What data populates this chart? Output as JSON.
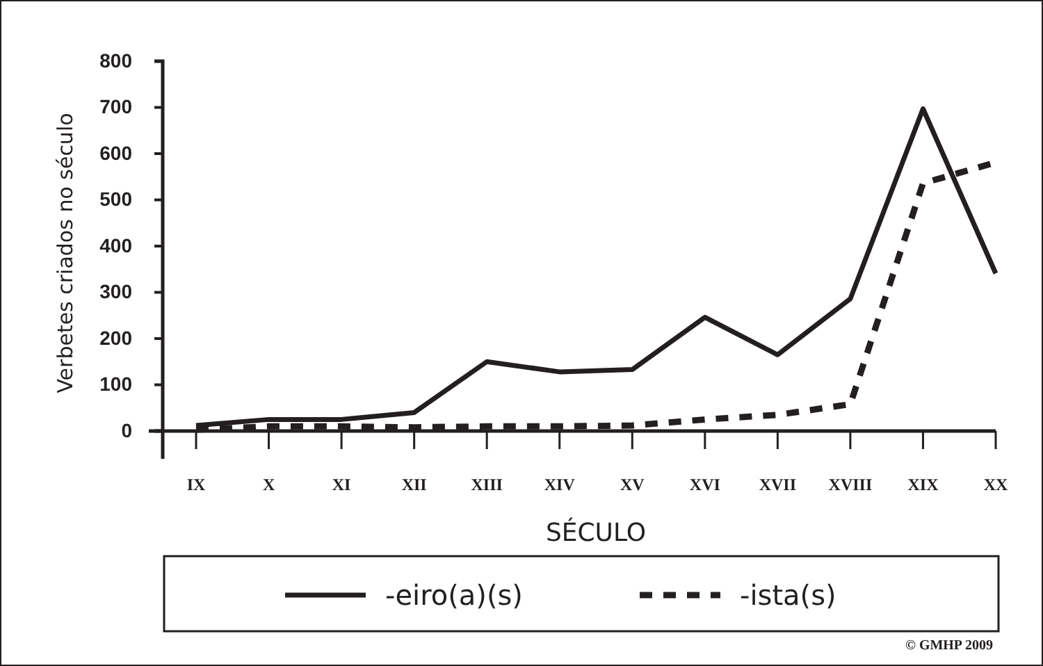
{
  "chart_data": {
    "type": "line",
    "xlabel": "SÉCULO",
    "ylabel": "Verbetes criados no século",
    "categories": [
      "IX",
      "X",
      "XI",
      "XII",
      "XIII",
      "XIV",
      "XV",
      "XVI",
      "XVII",
      "XVIII",
      "XIX",
      "XX"
    ],
    "series": [
      {
        "name": "-eiro(a)(s)",
        "color": "#231f20",
        "line_style": "solid",
        "values": [
          12,
          25,
          25,
          40,
          150,
          128,
          133,
          246,
          165,
          286,
          697,
          341
        ]
      },
      {
        "name": "-ista(s)",
        "color": "#231f20",
        "line_style": "dashed",
        "values": [
          3,
          10,
          10,
          8,
          10,
          10,
          12,
          25,
          35,
          58,
          536,
          581
        ]
      }
    ],
    "ylim": [
      0,
      800
    ],
    "yticks": [
      0,
      100,
      200,
      300,
      400,
      500,
      600,
      700,
      800
    ],
    "grid": false,
    "legend": "bottom",
    "marker": "none",
    "annotations": [
      "© GMHP 2009"
    ]
  }
}
